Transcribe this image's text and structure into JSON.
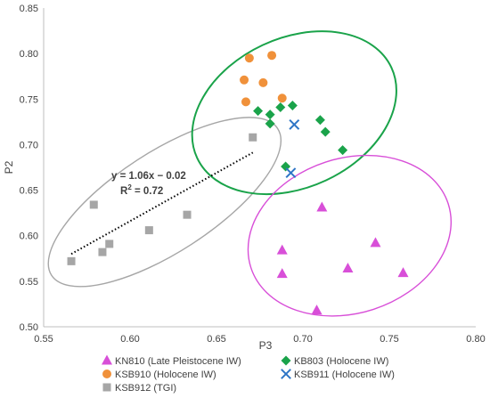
{
  "chart_data": {
    "type": "scatter",
    "xlabel": "P3",
    "ylabel": "P2",
    "xlim": [
      0.55,
      0.8
    ],
    "ylim": [
      0.5,
      0.85
    ],
    "x_ticks": [
      "0.55",
      "0.60",
      "0.65",
      "0.70",
      "0.75",
      "0.80"
    ],
    "y_ticks": [
      "0.50",
      "0.55",
      "0.60",
      "0.65",
      "0.70",
      "0.75",
      "0.80",
      "0.85"
    ],
    "grid": false,
    "legend_position": "bottom",
    "series": [
      {
        "name": "KN810 (Late Pleistocene IW)",
        "marker": "triangle",
        "color": "#d84fd8",
        "points": [
          [
            0.711,
            0.631
          ],
          [
            0.688,
            0.584
          ],
          [
            0.688,
            0.558
          ],
          [
            0.742,
            0.592
          ],
          [
            0.726,
            0.564
          ],
          [
            0.758,
            0.559
          ],
          [
            0.708,
            0.518
          ]
        ]
      },
      {
        "name": "KB803 (Holocene IW)",
        "marker": "diamond",
        "color": "#1aa34a",
        "points": [
          [
            0.694,
            0.743
          ],
          [
            0.687,
            0.741
          ],
          [
            0.674,
            0.737
          ],
          [
            0.681,
            0.733
          ],
          [
            0.681,
            0.723
          ],
          [
            0.71,
            0.727
          ],
          [
            0.713,
            0.714
          ],
          [
            0.723,
            0.694
          ],
          [
            0.69,
            0.676
          ]
        ]
      },
      {
        "name": "KSB910 (Holocene IW)",
        "marker": "circle",
        "color": "#f0913a",
        "points": [
          [
            0.669,
            0.795
          ],
          [
            0.682,
            0.798
          ],
          [
            0.666,
            0.771
          ],
          [
            0.677,
            0.768
          ],
          [
            0.667,
            0.747
          ],
          [
            0.688,
            0.751
          ]
        ]
      },
      {
        "name": "KSB911 (Holocene IW)",
        "marker": "cross",
        "color": "#2e75c6",
        "points": [
          [
            0.695,
            0.722
          ],
          [
            0.693,
            0.669
          ]
        ]
      },
      {
        "name": "KSB912 (TGI)",
        "marker": "square",
        "color": "#a6a6a6",
        "points": [
          [
            0.671,
            0.708
          ],
          [
            0.579,
            0.634
          ],
          [
            0.633,
            0.623
          ],
          [
            0.611,
            0.606
          ],
          [
            0.588,
            0.591
          ],
          [
            0.584,
            0.582
          ],
          [
            0.566,
            0.572
          ]
        ]
      }
    ],
    "trendline": {
      "series": "KSB912 (TGI)",
      "slope": 1.06,
      "intercept": -0.02,
      "x_range": [
        0.566,
        0.671
      ],
      "equation_label": "y = 1.06x − 0.02",
      "r2_label": "R",
      "r2_sup": "2",
      "r2_value": " = 0.72"
    },
    "ellipses": [
      {
        "name": "gray-group",
        "color": "#a6a6a6",
        "cx": 0.62,
        "cy": 0.637,
        "rx": 0.078,
        "ry": 0.055,
        "angle_deg": -33
      },
      {
        "name": "green-group",
        "color": "#1aa34a",
        "cx": 0.695,
        "cy": 0.735,
        "rx": 0.062,
        "ry": 0.082,
        "angle_deg": -25
      },
      {
        "name": "magenta-group",
        "color": "#d84fd8",
        "cx": 0.727,
        "cy": 0.6,
        "rx": 0.06,
        "ry": 0.085,
        "angle_deg": -18
      }
    ]
  }
}
